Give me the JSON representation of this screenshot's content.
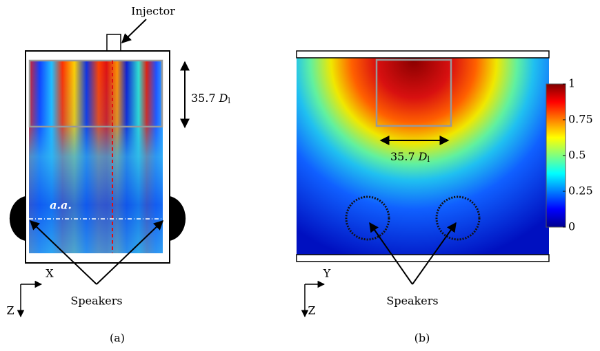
{
  "panel_a": {
    "caption": "(a)",
    "injector_label": "Injector",
    "dimension_label": {
      "value": "35.7",
      "symbol": "D",
      "subscript": "l"
    },
    "axis_label": "a.a.",
    "axes": {
      "horizontal": "X",
      "vertical": "Z"
    },
    "speakers_label": "Speakers"
  },
  "panel_b": {
    "caption": "(b)",
    "dimension_label": {
      "value": "35.7",
      "symbol": "D",
      "subscript": "l"
    },
    "axes": {
      "horizontal": "Y",
      "vertical": "Z"
    },
    "speakers_label": "Speakers",
    "colorbar": {
      "lim": [
        0,
        1
      ],
      "ticks": [
        1,
        0.75,
        0.5,
        0.25,
        0
      ]
    }
  }
}
